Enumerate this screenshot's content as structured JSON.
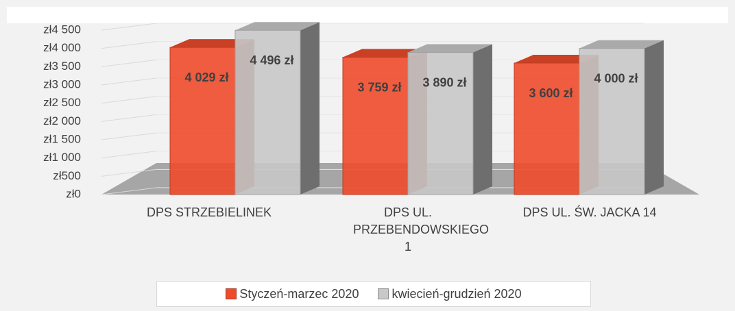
{
  "chart_data": {
    "type": "bar",
    "categories": [
      "DPS STRZEBIELINEK",
      "DPS UL. PRZEBENDOWSKIEGO 1",
      "DPS UL. ŚW. JACKA 14"
    ],
    "series": [
      {
        "name": "Styczeń-marzec 2020",
        "color": "#ee4b2b",
        "values": [
          4029,
          3759,
          3600
        ],
        "value_labels": [
          "4 029 zł",
          "3 759 zł",
          "3 600 zł"
        ]
      },
      {
        "name": "kwiecień-grudzień 2020",
        "color": "#c8c8c8",
        "values": [
          4496,
          3890,
          4000
        ],
        "value_labels": [
          "4 496 zł",
          "3 890 zł",
          "4 000 zł"
        ]
      }
    ],
    "ylim": [
      0,
      4500
    ],
    "yticks": [
      {
        "value": 0,
        "label": "zł0"
      },
      {
        "value": 500,
        "label": "zł500"
      },
      {
        "value": 1000,
        "label": "zł1 000"
      },
      {
        "value": 1500,
        "label": "zł1 500"
      },
      {
        "value": 2000,
        "label": "zł2 000"
      },
      {
        "value": 2500,
        "label": "zł2 500"
      },
      {
        "value": 3000,
        "label": "zł3 000"
      },
      {
        "value": 3500,
        "label": "zł3 500"
      },
      {
        "value": 4000,
        "label": "zł4 000"
      },
      {
        "value": 4500,
        "label": "zł4 500"
      }
    ],
    "grid": true
  }
}
